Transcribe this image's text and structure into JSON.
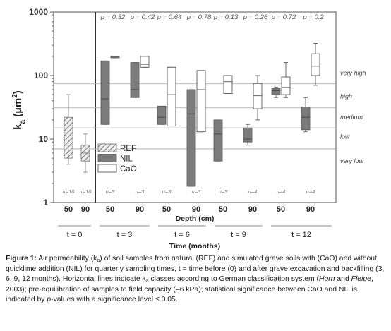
{
  "chart_data": {
    "type": "box",
    "ylabel": "k_a (µm²)",
    "ylabel_main": "k",
    "ylabel_sub": "a",
    "ylabel_unit": " (µm",
    "ylabel_sup": "2",
    "ylabel_close": ")",
    "yscale": "log",
    "ylim": [
      1,
      1000
    ],
    "yticks": [
      {
        "value": 1,
        "label": "1"
      },
      {
        "value": 10,
        "label": "10"
      },
      {
        "value": 100,
        "label": "100"
      },
      {
        "value": 1000,
        "label": "1000"
      }
    ],
    "xlabel": "Depth (cm)",
    "group_axis_label": "Time (months)",
    "legend": [
      {
        "name": "REF",
        "style": "hatch"
      },
      {
        "name": "NIL",
        "style": "gray"
      },
      {
        "name": "CaO",
        "style": "white"
      }
    ],
    "class_lines": [
      {
        "label": "very high",
        "value": 74,
        "text_at": 110
      },
      {
        "label": "high",
        "value": 31,
        "text_at": 47
      },
      {
        "label": "medium",
        "value": 15,
        "text_at": 22
      },
      {
        "label": "low",
        "value": 7,
        "text_at": 11
      },
      {
        "label": "very low",
        "value": null,
        "text_at": 4.5
      }
    ],
    "groups": [
      {
        "label": "t = 0",
        "p_values": [],
        "depths": [
          {
            "depth": "50",
            "boxes": [
              {
                "series": "REF",
                "whisker_low": 4,
                "q1": 5,
                "median": 8,
                "q3": 22,
                "whisker_high": 50,
                "n": "n=10"
              }
            ]
          },
          {
            "depth": "90",
            "boxes": [
              {
                "series": "REF",
                "whisker_low": 3,
                "q1": 4.5,
                "median": 6,
                "q3": 8,
                "whisker_high": 12,
                "n": "n=10"
              }
            ]
          }
        ]
      },
      {
        "label": "t = 3",
        "p_values": [
          "p = 0.32",
          "p = 0.42"
        ],
        "depths": [
          {
            "depth": "50",
            "boxes": [
              {
                "series": "NIL",
                "whisker_low": 17,
                "q1": 17,
                "median": 43,
                "q3": 170,
                "whisker_high": 170,
                "n": "n=3"
              },
              {
                "series": "CaO",
                "whisker_low": 190,
                "q1": 190,
                "median": 195,
                "q3": 200,
                "whisker_high": 200,
                "n": "n=3"
              }
            ]
          },
          {
            "depth": "90",
            "boxes": [
              {
                "series": "NIL",
                "whisker_low": 45,
                "q1": 45,
                "median": 60,
                "q3": 160,
                "whisker_high": 160,
                "n": "n=3"
              },
              {
                "series": "CaO",
                "whisker_low": 135,
                "q1": 135,
                "median": 150,
                "q3": 200,
                "whisker_high": 200,
                "n": "n=3"
              }
            ]
          }
        ]
      },
      {
        "label": "t = 6",
        "p_values": [
          "p = 0.64",
          "p = 0.78"
        ],
        "depths": [
          {
            "depth": "50",
            "boxes": [
              {
                "series": "NIL",
                "whisker_low": 17,
                "q1": 17,
                "median": 22,
                "q3": 33,
                "whisker_high": 33,
                "n": "n=3"
              },
              {
                "series": "CaO",
                "whisker_low": 16,
                "q1": 16,
                "median": 50,
                "q3": 135,
                "whisker_high": 135,
                "n": "n=3"
              }
            ]
          },
          {
            "depth": "90",
            "boxes": [
              {
                "series": "NIL",
                "whisker_low": 1.8,
                "q1": 1.8,
                "median": 25,
                "q3": 60,
                "whisker_high": 60,
                "n": "n=3"
              },
              {
                "series": "CaO",
                "whisker_low": 13,
                "q1": 13,
                "median": 60,
                "q3": 120,
                "whisker_high": 120,
                "n": "n=3"
              }
            ]
          }
        ]
      },
      {
        "label": "t = 9",
        "p_values": [
          "p = 0.13",
          "p = 0.26"
        ],
        "depths": [
          {
            "depth": "50",
            "boxes": [
              {
                "series": "NIL",
                "whisker_low": 4.5,
                "q1": 4.5,
                "median": 12,
                "q3": 20,
                "whisker_high": 20,
                "n": "n=3"
              },
              {
                "series": "CaO",
                "whisker_low": 52,
                "q1": 52,
                "median": 80,
                "q3": 100,
                "whisker_high": 100,
                "n": "n=3"
              }
            ]
          },
          {
            "depth": "90",
            "boxes": [
              {
                "series": "NIL",
                "whisker_low": 8,
                "q1": 9,
                "median": 10,
                "q3": 15,
                "whisker_high": 17,
                "n": "n=4"
              },
              {
                "series": "CaO",
                "whisker_low": 20,
                "q1": 30,
                "median": 48,
                "q3": 75,
                "whisker_high": 100,
                "n": "n=4"
              }
            ]
          }
        ]
      },
      {
        "label": "t = 12",
        "p_values": [
          "p = 0.72",
          "p = 0.2"
        ],
        "depths": [
          {
            "depth": "50",
            "boxes": [
              {
                "series": "NIL",
                "whisker_low": 45,
                "q1": 50,
                "median": 58,
                "q3": 63,
                "whisker_high": 66,
                "n": "n=4"
              },
              {
                "series": "CaO",
                "whisker_low": 45,
                "q1": 50,
                "median": 65,
                "q3": 95,
                "whisker_high": 160,
                "n": "n=4"
              }
            ]
          },
          {
            "depth": "90",
            "boxes": [
              {
                "series": "NIL",
                "whisker_low": 13,
                "q1": 14,
                "median": 22,
                "q3": 32,
                "whisker_high": 45,
                "n": "n=4"
              },
              {
                "series": "CaO",
                "whisker_low": 70,
                "q1": 100,
                "median": 140,
                "q3": 220,
                "whisker_high": 320,
                "n": "n=4"
              }
            ]
          }
        ]
      }
    ]
  },
  "caption": {
    "label": "Figure 1:",
    "seg1": " Air permeability (k",
    "sub1": "a",
    "seg2": ") of soil samples from natural (REF) and simulated grave soils with (CaO) and without quicklime addition (NIL) for quarterly sampling times, t = time before (0) and after grave excavation and backfilling (3, 6, 9, 12 months). Horizontal lines indicate k",
    "sub2": "a",
    "seg3": " classes according to German classification system (",
    "ital1": "Horn",
    "seg4": " and ",
    "ital2": "Fleige",
    "seg5": ", 2003); pre-equilibration of samples to field capacity (–6 kPa); statistical significance between CaO and NIL is indicated by ",
    "ital3": "p",
    "seg6": "-values with a significance level ≤ 0.05."
  },
  "colors": {
    "nil_fill": "#7b7b7b",
    "nil_stroke": "#555555",
    "cao_fill": "#ffffff",
    "cao_stroke": "#444444",
    "ref_hatch": "#777777",
    "class_line": "#a9a9a9",
    "frame": "#555555",
    "text_light": "#555555"
  }
}
